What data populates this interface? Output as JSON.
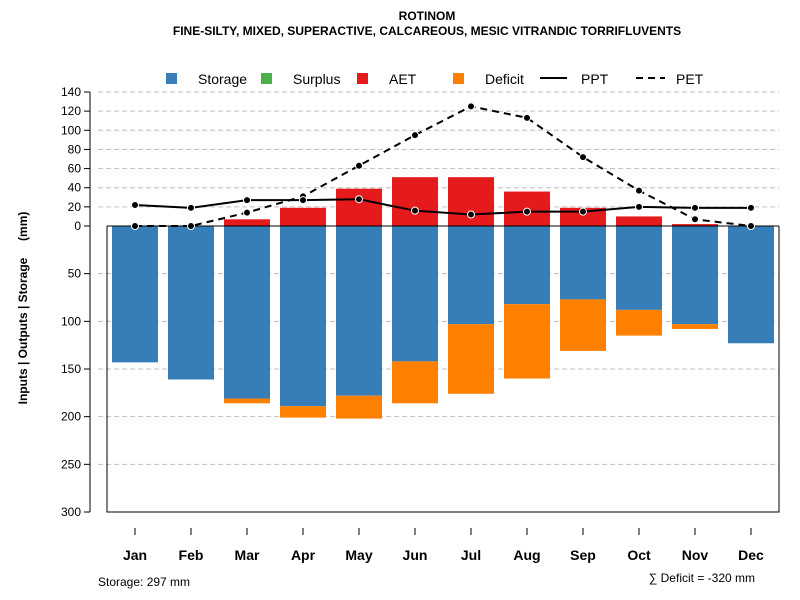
{
  "chart_data": {
    "type": "bar",
    "title": "ROTINOM",
    "subtitle": "FINE-SILTY, MIXED, SUPERACTIVE, CALCAREOUS, MESIC VITRANDIC TORRIFLUVENTS",
    "ylabel": "Inputs | Outputs | Storage     (mm)",
    "categories": [
      "Jan",
      "Feb",
      "Mar",
      "Apr",
      "May",
      "Jun",
      "Jul",
      "Aug",
      "Sep",
      "Oct",
      "Nov",
      "Dec"
    ],
    "upper_ticks": [
      "140",
      "120",
      "100",
      "80",
      "60",
      "40",
      "20",
      "0"
    ],
    "lower_ticks": [
      "50",
      "100",
      "150",
      "200",
      "250",
      "300"
    ],
    "upper_ylim": [
      0,
      140
    ],
    "lower_ylim": [
      0,
      300
    ],
    "legend": {
      "storage": "Storage",
      "surplus": "Surplus",
      "aet": "AET",
      "deficit": "Deficit",
      "ppt": "PPT",
      "pet": "PET"
    },
    "series": [
      {
        "name": "AET",
        "values": [
          0,
          0,
          7,
          19,
          39,
          51,
          51,
          36,
          19,
          10,
          2,
          0
        ]
      },
      {
        "name": "Storage",
        "values": [
          143,
          161,
          181,
          189,
          178,
          142,
          103,
          82,
          77,
          88,
          103,
          123
        ]
      },
      {
        "name": "Deficit",
        "values": [
          0,
          0,
          5,
          12,
          24,
          44,
          73,
          78,
          54,
          27,
          5,
          0
        ]
      },
      {
        "name": "Surplus",
        "values": [
          0,
          0,
          0,
          0,
          0,
          0,
          0,
          0,
          0,
          0,
          0,
          0
        ]
      },
      {
        "name": "PPT",
        "values": [
          22,
          19,
          27,
          27,
          28,
          16,
          12,
          15,
          15,
          20,
          19,
          19
        ]
      },
      {
        "name": "PET",
        "values": [
          0,
          0,
          14,
          31,
          63,
          95,
          125,
          113,
          72,
          37,
          7,
          0
        ]
      }
    ],
    "footer_storage": "Storage: 297 mm",
    "footer_deficit": "∑ Deficit = -320 mm"
  },
  "colors": {
    "storage": "#377EB8",
    "surplus": "#4DAF4A",
    "aet": "#E41A1C",
    "deficit": "#FF7F00",
    "grid": "#bebebe"
  }
}
